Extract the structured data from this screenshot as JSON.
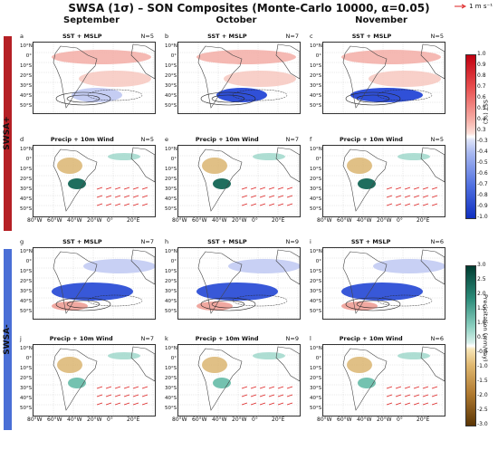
{
  "title": "SWSA (1σ) – SON Composites (Monte-Carlo 10000, α=0.05)",
  "vector_legend": "1 m s⁻¹",
  "columns": [
    "September",
    "October",
    "November"
  ],
  "groups": [
    "SWSA+",
    "SWSA-"
  ],
  "colors": {
    "swsa_plus": "#b52025",
    "swsa_minus": "#4a6fd6"
  },
  "lat_labels": [
    "10°N",
    "0°",
    "10°S",
    "20°S",
    "30°S",
    "40°S",
    "50°S"
  ],
  "lon_labels": [
    "80°W",
    "60°W",
    "40°W",
    "20°W",
    "0°",
    "20°E"
  ],
  "panels": [
    {
      "id": "a",
      "title": "SST + MSLP",
      "n": "N=5"
    },
    {
      "id": "b",
      "title": "SST + MSLP",
      "n": "N=7"
    },
    {
      "id": "c",
      "title": "SST + MSLP",
      "n": "N=5"
    },
    {
      "id": "d",
      "title": "Precip + 10m Wind",
      "n": "N=5"
    },
    {
      "id": "e",
      "title": "Precip + 10m Wind",
      "n": "N=7"
    },
    {
      "id": "f",
      "title": "Precip + 10m Wind",
      "n": "N=5"
    },
    {
      "id": "g",
      "title": "SST + MSLP",
      "n": "N=7"
    },
    {
      "id": "h",
      "title": "SST + MSLP",
      "n": "N=9"
    },
    {
      "id": "i",
      "title": "SST + MSLP",
      "n": "N=6"
    },
    {
      "id": "j",
      "title": "Precip + 10m Wind",
      "n": "N=7"
    },
    {
      "id": "k",
      "title": "Precip + 10m Wind",
      "n": "N=9"
    },
    {
      "id": "l",
      "title": "Precip + 10m Wind",
      "n": "N=6"
    }
  ],
  "sst_colorbar": {
    "label": "SST (°C)",
    "ticks": [
      "1.0",
      "0.9",
      "0.8",
      "0.7",
      "0.6",
      "0.5",
      "0.4",
      "0.3",
      "-0.3",
      "-0.4",
      "-0.5",
      "-0.6",
      "-0.7",
      "-0.8",
      "-0.9",
      "-1.0"
    ]
  },
  "precip_colorbar": {
    "label": "Precipitation (mm/day)",
    "ticks": [
      "3.0",
      "2.5",
      "2.0",
      "1.5",
      "1.0",
      "0.5",
      "-0.5",
      "-1.0",
      "-1.5",
      "-2.0",
      "-2.5",
      "-3.0"
    ]
  }
}
